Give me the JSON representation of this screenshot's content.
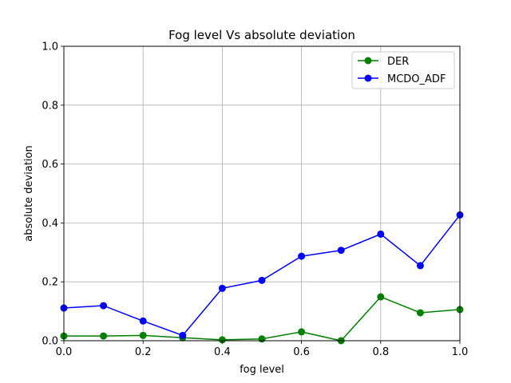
{
  "chart_data": {
    "type": "line",
    "title": "Fog level Vs absolute deviation",
    "xlabel": "fog level",
    "ylabel": "absolute deviation",
    "xlim": [
      0.0,
      1.0
    ],
    "ylim": [
      0.0,
      1.0
    ],
    "xticks": [
      "0.0",
      "0.2",
      "0.4",
      "0.6",
      "0.8",
      "1.0"
    ],
    "yticks": [
      "0.0",
      "0.2",
      "0.4",
      "0.6",
      "0.8",
      "1.0"
    ],
    "grid": true,
    "legend_position": "top-right",
    "x": [
      0.0,
      0.1,
      0.2,
      0.3,
      0.4,
      0.5,
      0.6,
      0.7,
      0.8,
      0.9,
      1.0
    ],
    "series": [
      {
        "name": "DER",
        "color": "#008000",
        "values": [
          0.016,
          0.016,
          0.018,
          0.01,
          0.003,
          0.006,
          0.03,
          0.0,
          0.149,
          0.095,
          0.106
        ]
      },
      {
        "name": "MCDO_ADF",
        "color": "#0000ff",
        "values": [
          0.111,
          0.119,
          0.067,
          0.018,
          0.178,
          0.205,
          0.287,
          0.307,
          0.362,
          0.255,
          0.427
        ]
      }
    ]
  }
}
